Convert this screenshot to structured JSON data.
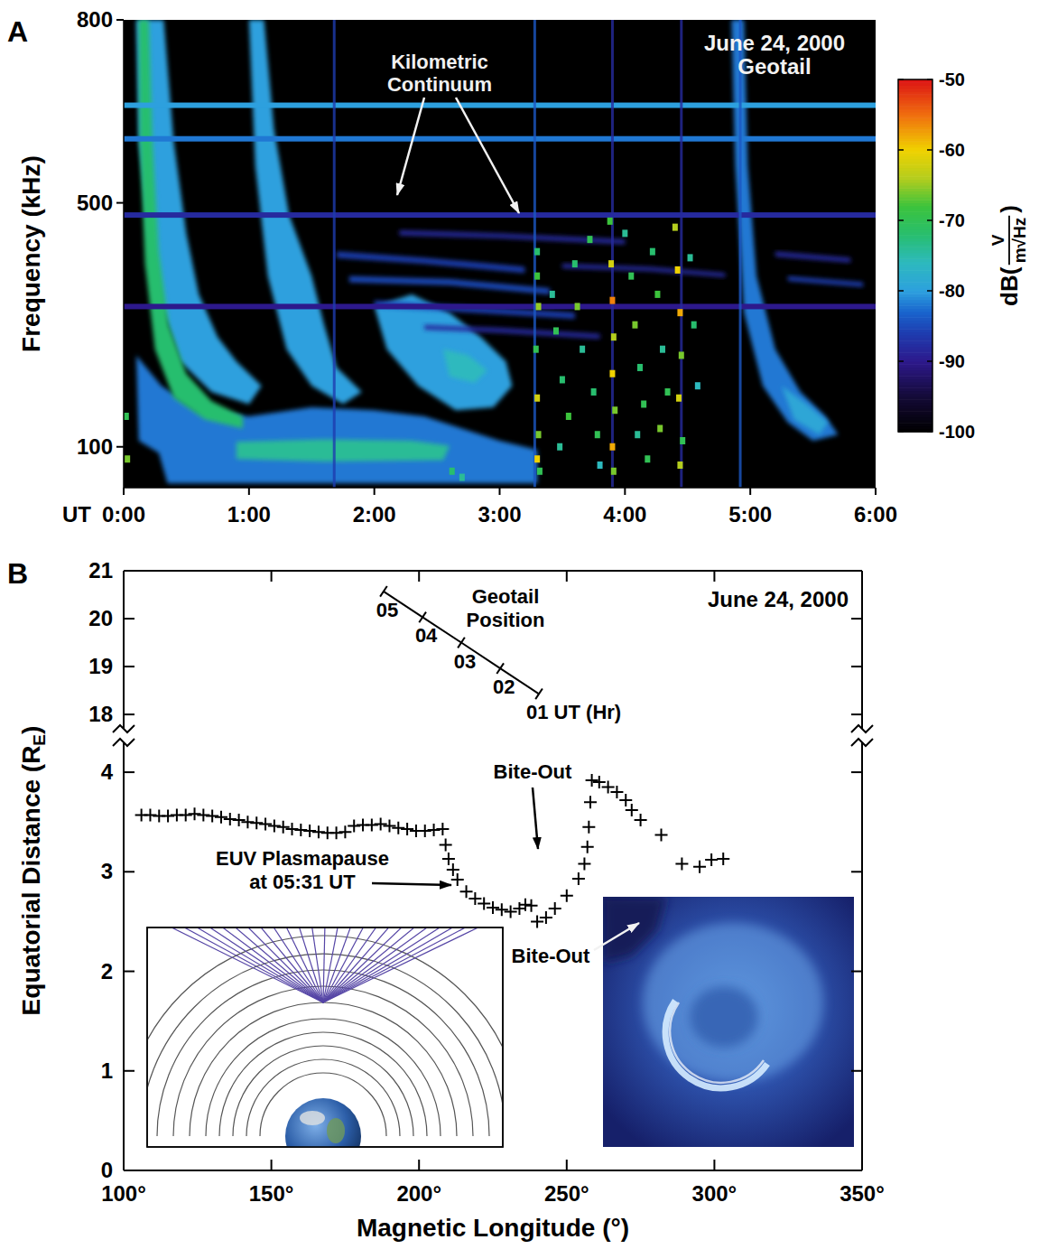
{
  "chart_data": [
    {
      "type": "spectrogram",
      "panel": "A",
      "title": "June 24, 2000",
      "subtitle": "Geotail",
      "xlabel": "UT",
      "ylabel": "Frequency (kHz)",
      "xlim": [
        0,
        6
      ],
      "xticks": [
        {
          "value": 0,
          "label": "0:00"
        },
        {
          "value": 1,
          "label": "1:00"
        },
        {
          "value": 2,
          "label": "2:00"
        },
        {
          "value": 3,
          "label": "3:00"
        },
        {
          "value": 4,
          "label": "4:00"
        },
        {
          "value": 5,
          "label": "5:00"
        },
        {
          "value": 6,
          "label": "6:00"
        }
      ],
      "ylim": [
        33,
        800
      ],
      "yticks": [
        100,
        500,
        800
      ],
      "color_range": [
        -100,
        -50
      ],
      "color_ticks": [
        -50,
        -60,
        -70,
        -80,
        -90,
        -100
      ],
      "colorbar_label": {
        "prefix": "dB(",
        "numerator": "V",
        "denominator": "m√Hz",
        "suffix": ")"
      },
      "annotation": "Kilometric Continuum",
      "emissions": [
        {
          "level": -82,
          "outline": [
            [
              0.1,
              250
            ],
            [
              0.3,
              200
            ],
            [
              0.6,
              160
            ],
            [
              1.0,
              150
            ],
            [
              1.5,
              165
            ],
            [
              2.0,
              160
            ],
            [
              2.4,
              150
            ],
            [
              2.7,
              130
            ],
            [
              3.0,
              110
            ],
            [
              3.3,
              95
            ],
            [
              3.3,
              40
            ],
            [
              0.35,
              40
            ],
            [
              0.28,
              90
            ],
            [
              0.12,
              110
            ]
          ]
        },
        {
          "level": -80,
          "outline": [
            [
              0.1,
              800
            ],
            [
              0.32,
              800
            ],
            [
              0.4,
              600
            ],
            [
              0.5,
              450
            ],
            [
              0.6,
              350
            ],
            [
              0.75,
              280
            ],
            [
              0.9,
              240
            ],
            [
              1.1,
              200
            ],
            [
              1.0,
              170
            ],
            [
              0.7,
              190
            ],
            [
              0.45,
              240
            ],
            [
              0.3,
              330
            ],
            [
              0.2,
              450
            ],
            [
              0.12,
              600
            ]
          ]
        },
        {
          "level": -80,
          "outline": [
            [
              1.0,
              800
            ],
            [
              1.12,
              800
            ],
            [
              1.2,
              620
            ],
            [
              1.32,
              480
            ],
            [
              1.5,
              380
            ],
            [
              1.6,
              300
            ],
            [
              1.7,
              230
            ],
            [
              1.9,
              190
            ],
            [
              1.75,
              170
            ],
            [
              1.5,
              200
            ],
            [
              1.3,
              260
            ],
            [
              1.15,
              380
            ],
            [
              1.05,
              560
            ]
          ]
        },
        {
          "level": -80,
          "outline": [
            [
              2.0,
              330
            ],
            [
              2.3,
              350
            ],
            [
              2.6,
              320
            ],
            [
              2.85,
              280
            ],
            [
              3.05,
              240
            ],
            [
              3.1,
              200
            ],
            [
              2.95,
              165
            ],
            [
              2.65,
              160
            ],
            [
              2.35,
              200
            ],
            [
              2.1,
              260
            ]
          ]
        },
        {
          "level": -76,
          "outline": [
            [
              2.55,
              260
            ],
            [
              2.75,
              250
            ],
            [
              2.9,
              225
            ],
            [
              2.8,
              205
            ],
            [
              2.6,
              215
            ]
          ]
        },
        {
          "level": -72,
          "outline": [
            [
              0.12,
              800
            ],
            [
              0.2,
              800
            ],
            [
              0.23,
              600
            ],
            [
              0.28,
              420
            ],
            [
              0.36,
              300
            ],
            [
              0.5,
              220
            ],
            [
              0.7,
              175
            ],
            [
              0.95,
              150
            ],
            [
              0.95,
              130
            ],
            [
              0.65,
              145
            ],
            [
              0.4,
              180
            ],
            [
              0.25,
              260
            ],
            [
              0.17,
              400
            ],
            [
              0.13,
              600
            ]
          ]
        },
        {
          "level": -74,
          "outline": [
            [
              0.9,
              108
            ],
            [
              1.6,
              112
            ],
            [
              2.3,
              110
            ],
            [
              2.6,
              102
            ],
            [
              2.55,
              78
            ],
            [
              1.6,
              76
            ],
            [
              0.9,
              80
            ]
          ]
        },
        {
          "level": -82,
          "outline": [
            [
              4.85,
              800
            ],
            [
              4.95,
              800
            ],
            [
              4.98,
              560
            ],
            [
              5.05,
              380
            ],
            [
              5.2,
              260
            ],
            [
              5.4,
              190
            ],
            [
              5.6,
              150
            ],
            [
              5.7,
              120
            ],
            [
              5.5,
              110
            ],
            [
              5.3,
              140
            ],
            [
              5.1,
              200
            ],
            [
              4.95,
              320
            ],
            [
              4.88,
              560
            ]
          ]
        },
        {
          "level": -79,
          "outline": [
            [
              5.25,
              200
            ],
            [
              5.45,
              170
            ],
            [
              5.62,
              140
            ],
            [
              5.55,
              120
            ],
            [
              5.35,
              145
            ]
          ]
        },
        {
          "level": -86,
          "outline": [
            [
              1.7,
              420
            ],
            [
              2.4,
              410
            ],
            [
              3.2,
              395
            ],
            [
              3.2,
              385
            ],
            [
              2.4,
              400
            ],
            [
              1.7,
              410
            ]
          ]
        },
        {
          "level": -85,
          "outline": [
            [
              1.8,
              380
            ],
            [
              2.6,
              375
            ],
            [
              3.4,
              360
            ],
            [
              3.4,
              350
            ],
            [
              2.6,
              365
            ],
            [
              1.8,
              370
            ]
          ]
        },
        {
          "level": -86,
          "outline": [
            [
              2.0,
              340
            ],
            [
              2.8,
              330
            ],
            [
              3.6,
              320
            ],
            [
              3.6,
              310
            ],
            [
              2.8,
              320
            ],
            [
              2.0,
              330
            ]
          ]
        },
        {
          "level": -88,
          "outline": [
            [
              2.4,
              300
            ],
            [
              3.0,
              295
            ],
            [
              3.8,
              285
            ],
            [
              3.8,
              277
            ],
            [
              3.0,
              287
            ],
            [
              2.4,
              292
            ]
          ]
        },
        {
          "level": -88,
          "outline": [
            [
              2.2,
              455
            ],
            [
              3.0,
              450
            ],
            [
              4.0,
              440
            ],
            [
              4.0,
              432
            ],
            [
              3.0,
              442
            ],
            [
              2.2,
              447
            ]
          ]
        },
        {
          "level": -88,
          "outline": [
            [
              3.5,
              400
            ],
            [
              4.2,
              395
            ],
            [
              4.8,
              385
            ],
            [
              4.8,
              378
            ],
            [
              4.2,
              388
            ],
            [
              3.5,
              393
            ]
          ]
        },
        {
          "level": -88,
          "outline": [
            [
              5.2,
              420
            ],
            [
              5.8,
              410
            ],
            [
              5.8,
              402
            ],
            [
              5.2,
              412
            ]
          ]
        },
        {
          "level": -86,
          "outline": [
            [
              5.3,
              380
            ],
            [
              5.9,
              370
            ],
            [
              5.9,
              362
            ],
            [
              5.3,
              372
            ]
          ]
        }
      ],
      "bands": [
        {
          "f": 660,
          "level": -80
        },
        {
          "f": 605,
          "level": -82
        },
        {
          "f": 480,
          "level": -88
        },
        {
          "f": 330,
          "level": -90
        }
      ],
      "spikes": [
        {
          "t": 1.68,
          "level": -86
        },
        {
          "t": 3.28,
          "level": -84
        },
        {
          "t": 3.9,
          "level": -88
        },
        {
          "t": 4.45,
          "level": -88
        },
        {
          "t": 4.92,
          "level": -84
        }
      ],
      "bursts": [
        [
          3.3,
          420,
          -72
        ],
        [
          3.3,
          380,
          -68
        ],
        [
          3.31,
          330,
          -65
        ],
        [
          3.29,
          260,
          -70
        ],
        [
          3.3,
          180,
          -62
        ],
        [
          3.31,
          120,
          -66
        ],
        [
          3.3,
          80,
          -60
        ],
        [
          3.32,
          60,
          -70
        ],
        [
          3.42,
          350,
          -74
        ],
        [
          3.45,
          290,
          -70
        ],
        [
          3.5,
          210,
          -72
        ],
        [
          3.55,
          150,
          -68
        ],
        [
          3.48,
          100,
          -74
        ],
        [
          3.6,
          400,
          -72
        ],
        [
          3.62,
          330,
          -66
        ],
        [
          3.66,
          260,
          -74
        ],
        [
          3.72,
          440,
          -70
        ],
        [
          3.75,
          190,
          -72
        ],
        [
          3.78,
          120,
          -70
        ],
        [
          3.8,
          70,
          -76
        ],
        [
          3.88,
          470,
          -68
        ],
        [
          3.89,
          400,
          -62
        ],
        [
          3.9,
          340,
          -56
        ],
        [
          3.91,
          280,
          -64
        ],
        [
          3.9,
          220,
          -60
        ],
        [
          3.92,
          160,
          -66
        ],
        [
          3.9,
          100,
          -58
        ],
        [
          3.91,
          60,
          -66
        ],
        [
          4.0,
          450,
          -74
        ],
        [
          4.05,
          380,
          -70
        ],
        [
          4.08,
          300,
          -66
        ],
        [
          4.12,
          230,
          -72
        ],
        [
          4.15,
          170,
          -70
        ],
        [
          4.1,
          120,
          -74
        ],
        [
          4.18,
          80,
          -70
        ],
        [
          4.22,
          420,
          -72
        ],
        [
          4.26,
          350,
          -68
        ],
        [
          4.3,
          260,
          -74
        ],
        [
          4.34,
          190,
          -70
        ],
        [
          4.28,
          130,
          -66
        ],
        [
          4.4,
          460,
          -64
        ],
        [
          4.42,
          390,
          -60
        ],
        [
          4.44,
          320,
          -58
        ],
        [
          4.45,
          250,
          -66
        ],
        [
          4.43,
          180,
          -62
        ],
        [
          4.46,
          110,
          -70
        ],
        [
          4.44,
          70,
          -64
        ],
        [
          4.52,
          410,
          -74
        ],
        [
          4.55,
          300,
          -72
        ],
        [
          4.58,
          200,
          -76
        ],
        [
          0.02,
          150,
          -70
        ],
        [
          0.03,
          80,
          -66
        ],
        [
          2.62,
          60,
          -72
        ],
        [
          2.7,
          50,
          -74
        ]
      ]
    },
    {
      "type": "scatter",
      "panel": "B",
      "title": "June 24, 2000",
      "xlabel": "Magnetic Longitude (°)",
      "ylabel": {
        "text": "Equatorial Distance (R",
        "sub": "E",
        "tail": ")"
      },
      "xlim": [
        100,
        350
      ],
      "xticks": [
        {
          "value": 100,
          "label": "100°"
        },
        {
          "value": 150,
          "label": "150°"
        },
        {
          "value": 200,
          "label": "200°"
        },
        {
          "value": 250,
          "label": "250°"
        },
        {
          "value": 300,
          "label": "300°"
        },
        {
          "value": 350,
          "label": "350°"
        }
      ],
      "ylim": [
        0,
        4.3
      ],
      "yticks": [
        0,
        1,
        2,
        3,
        4
      ],
      "marker": "plus",
      "color": "#000000",
      "x": [
        106,
        109,
        112,
        115,
        118,
        121,
        124,
        127,
        130,
        133,
        136,
        139,
        142,
        145,
        148,
        151,
        154,
        157,
        160,
        163,
        166,
        169,
        172,
        175,
        178,
        181,
        184,
        187,
        190,
        193,
        196,
        199,
        202,
        205,
        208,
        209,
        210,
        211.5,
        213,
        216,
        219,
        222,
        225,
        228,
        231,
        234,
        236,
        238,
        240,
        243,
        246,
        250,
        254,
        256,
        257,
        257.5,
        258,
        258.5,
        261,
        264,
        267,
        270,
        272,
        275,
        282,
        289,
        295,
        299,
        303
      ],
      "values": [
        3.57,
        3.57,
        3.56,
        3.56,
        3.57,
        3.57,
        3.58,
        3.57,
        3.56,
        3.55,
        3.53,
        3.52,
        3.5,
        3.49,
        3.48,
        3.46,
        3.45,
        3.43,
        3.42,
        3.41,
        3.4,
        3.39,
        3.39,
        3.4,
        3.46,
        3.47,
        3.47,
        3.48,
        3.46,
        3.44,
        3.43,
        3.41,
        3.41,
        3.42,
        3.43,
        3.27,
        3.13,
        3.02,
        2.92,
        2.8,
        2.73,
        2.68,
        2.64,
        2.62,
        2.6,
        2.63,
        2.67,
        2.66,
        2.5,
        2.54,
        2.63,
        2.76,
        2.93,
        3.08,
        3.25,
        3.45,
        3.7,
        3.92,
        3.9,
        3.85,
        3.8,
        3.72,
        3.62,
        3.52,
        3.37,
        3.08,
        3.05,
        3.12,
        3.13
      ],
      "annotation_bite_out": "Bite-Out",
      "annotation_plasmapause": [
        "EUV Plasmapause",
        "at 05:31 UT"
      ],
      "inset_label": "Bite-Out"
    },
    {
      "type": "line",
      "title": "Geotail Position",
      "xlim": [
        100,
        350
      ],
      "ylim": [
        17.7,
        21
      ],
      "yticks": [
        18,
        19,
        20,
        21
      ],
      "tick_labels": "y",
      "color": "#000000",
      "x": [
        188,
        201.2,
        214.3,
        227.5,
        240.6
      ],
      "values": [
        20.57,
        20.03,
        19.5,
        18.96,
        18.43
      ],
      "point_labels": [
        "05",
        "04",
        "03",
        "02",
        "01 UT (Hr)"
      ]
    }
  ]
}
